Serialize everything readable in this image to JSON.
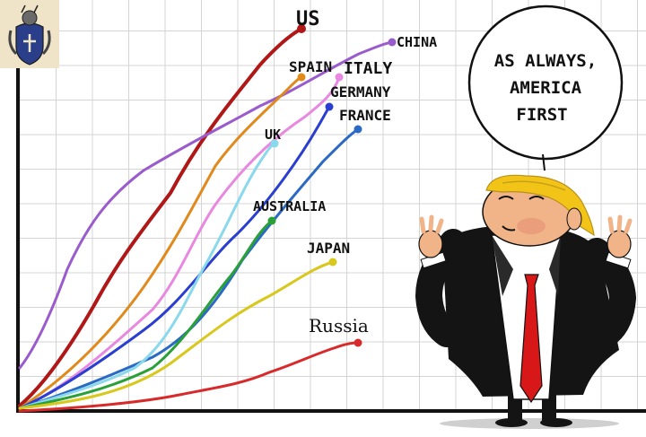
{
  "cartoon": {
    "countries": [
      {
        "name": "US",
        "color": "#b01818"
      },
      {
        "name": "CHINA",
        "color": "#9a5ccc"
      },
      {
        "name": "SPAIN",
        "color": "#e08a1e"
      },
      {
        "name": "ITALY",
        "color": "#e888e0"
      },
      {
        "name": "GERMANY",
        "color": "#2a3ed0"
      },
      {
        "name": "FRANCE",
        "color": "#2a6ac4"
      },
      {
        "name": "UK",
        "color": "#8ad8ec"
      },
      {
        "name": "AUSTRALIA",
        "color": "#2aa038"
      },
      {
        "name": "JAPAN",
        "color": "#d8c81c"
      },
      {
        "name": "Russia",
        "color": "#d82a2a"
      }
    ],
    "speech_bubble": {
      "line1": "AS ALWAYS,",
      "line2": "AMERICA",
      "line3": "FIRST"
    },
    "colors": {
      "grid": "#d4d4d4",
      "axis": "#111111",
      "suit": "#141414",
      "tie": "#d81818",
      "hair": "#f2c418",
      "skin": "#f0b488",
      "logo_bg": "#efe3c8"
    },
    "logo_icon": "heraldic-crest-icon"
  }
}
